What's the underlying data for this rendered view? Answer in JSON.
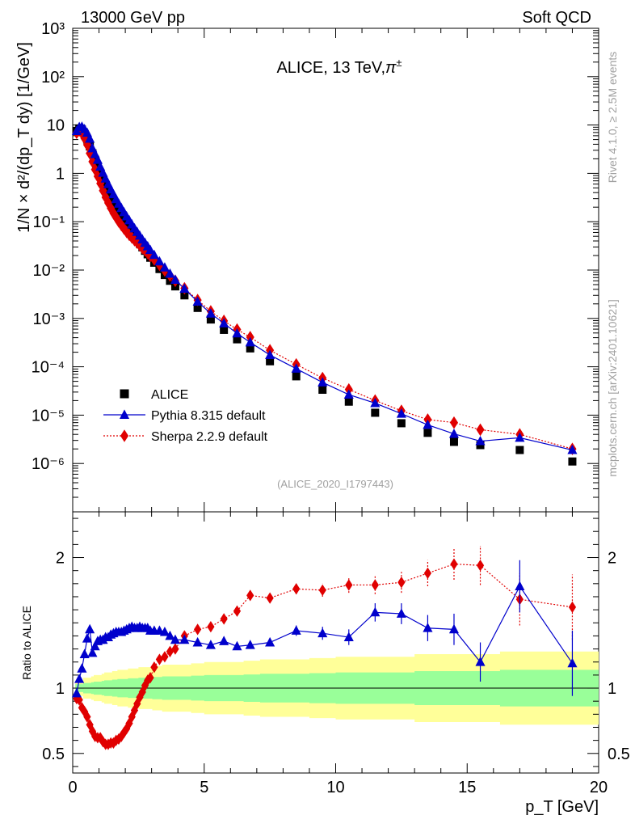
{
  "header": {
    "left": "13000 GeV pp",
    "right": "Soft QCD"
  },
  "side": {
    "rivet": "Rivet 4.1.0, ≥ 2.5M events",
    "mcplots": "mcplots.cern.ch [arXiv:2401.10621]"
  },
  "chart_data": {
    "type": "scatter",
    "title": "ALICE, 13 TeV,",
    "title_particle": "π",
    "title_sup": "±",
    "watermark": "(ALICE_2020_I1797443)",
    "ylabel_main": "1/N × d²/(dp_T dy) [1/GeV]",
    "ylabel_ratio": "Ratio to ALICE",
    "xlabel": "p_T [GeV]",
    "xlim": [
      0,
      20
    ],
    "ylim_main_log10": [
      -7,
      3
    ],
    "ylim_ratio": [
      0.35,
      2.35
    ],
    "x_ticks": [
      "0",
      "5",
      "10",
      "15",
      "20"
    ],
    "y_ticks_main": [
      "10⁻⁶",
      "10⁻⁵",
      "10⁻⁴",
      "10⁻³",
      "10⁻²",
      "10⁻¹",
      "1",
      "10",
      "10²",
      "10³"
    ],
    "y_ticks_ratio": [
      "0.5",
      "1",
      "2"
    ],
    "legend": [
      {
        "label": "ALICE",
        "color": "#000000"
      },
      {
        "label": "Pythia 8.315 default",
        "color": "#0000cc"
      },
      {
        "label": "Sherpa 2.2.9 default",
        "color": "#e00000"
      }
    ],
    "x": [
      0.15,
      0.25,
      0.35,
      0.45,
      0.55,
      0.65,
      0.75,
      0.85,
      0.95,
      1.05,
      1.15,
      1.25,
      1.35,
      1.45,
      1.55,
      1.65,
      1.75,
      1.85,
      1.95,
      2.05,
      2.15,
      2.25,
      2.35,
      2.45,
      2.55,
      2.65,
      2.75,
      2.85,
      2.95,
      3.1,
      3.3,
      3.5,
      3.7,
      3.9,
      4.25,
      4.75,
      5.25,
      5.75,
      6.25,
      6.75,
      7.5,
      8.5,
      9.5,
      10.5,
      11.5,
      12.5,
      13.5,
      14.5,
      15.5,
      17.0,
      19.0
    ],
    "series": [
      {
        "name": "ALICE",
        "values": [
          7.5,
          8.5,
          8.0,
          6.5,
          5.0,
          3.6,
          2.6,
          1.9,
          1.4,
          1.0,
          0.75,
          0.56,
          0.43,
          0.33,
          0.26,
          0.205,
          0.165,
          0.134,
          0.109,
          0.089,
          0.073,
          0.06,
          0.05,
          0.042,
          0.035,
          0.0295,
          0.025,
          0.0212,
          0.018,
          0.0142,
          0.0105,
          0.0079,
          0.006,
          0.0046,
          0.003,
          0.00165,
          0.00095,
          0.00058,
          0.00037,
          0.00024,
          0.00013,
          6.35e-05,
          3.35e-05,
          1.9e-05,
          1.12e-05,
          6.8e-06,
          4.3e-06,
          2.8e-06,
          2.4e-06,
          1.9e-06,
          1.1e-06
        ],
        "err_frac": [
          0.03,
          0.03,
          0.03,
          0.04,
          0.04,
          0.04,
          0.045,
          0.05,
          0.05,
          0.05,
          0.055,
          0.06,
          0.06,
          0.06,
          0.065,
          0.065,
          0.07,
          0.07,
          0.07,
          0.07,
          0.075,
          0.075,
          0.075,
          0.075,
          0.08,
          0.08,
          0.08,
          0.08,
          0.08,
          0.085,
          0.085,
          0.09,
          0.09,
          0.09,
          0.09,
          0.095,
          0.1,
          0.1,
          0.1,
          0.105,
          0.11,
          0.11,
          0.115,
          0.12,
          0.12,
          0.12,
          0.13,
          0.13,
          0.13,
          0.14,
          0.14
        ]
      },
      {
        "name": "Pythia 8.315 default",
        "values": [
          7.5,
          9.1,
          9.2,
          8.2,
          6.9,
          5.2,
          3.3,
          2.5,
          1.9,
          1.37,
          1.03,
          0.78,
          0.6,
          0.465,
          0.37,
          0.293,
          0.236,
          0.192,
          0.157,
          0.129,
          0.107,
          0.088,
          0.073,
          0.0615,
          0.0515,
          0.043,
          0.0365,
          0.031,
          0.026,
          0.0205,
          0.0151,
          0.0113,
          0.0084,
          0.0063,
          0.0041,
          0.00222,
          0.00126,
          0.00079,
          0.00049,
          0.00032,
          0.000175,
          9.15e-05,
          4.75e-05,
          2.65e-05,
          1.77e-05,
          1.07e-05,
          6.3e-06,
          4.1e-06,
          2.9e-06,
          3.4e-06,
          1.9e-06
        ],
        "ratio": [
          0.96,
          1.07,
          1.15,
          1.26,
          1.38,
          1.45,
          1.27,
          1.32,
          1.36,
          1.37,
          1.37,
          1.39,
          1.39,
          1.41,
          1.42,
          1.43,
          1.43,
          1.43,
          1.44,
          1.45,
          1.46,
          1.47,
          1.46,
          1.46,
          1.47,
          1.46,
          1.46,
          1.46,
          1.44,
          1.44,
          1.44,
          1.43,
          1.4,
          1.37,
          1.37,
          1.35,
          1.33,
          1.36,
          1.32,
          1.33,
          1.35,
          1.44,
          1.42,
          1.39,
          1.58,
          1.57,
          1.46,
          1.45,
          1.2,
          1.78,
          1.19
        ],
        "ratio_err": [
          0.01,
          0.01,
          0.01,
          0.01,
          0.01,
          0.01,
          0.01,
          0.01,
          0.01,
          0.01,
          0.01,
          0.01,
          0.01,
          0.01,
          0.01,
          0.01,
          0.01,
          0.01,
          0.01,
          0.01,
          0.01,
          0.01,
          0.01,
          0.01,
          0.01,
          0.01,
          0.01,
          0.01,
          0.01,
          0.01,
          0.01,
          0.01,
          0.01,
          0.01,
          0.01,
          0.01,
          0.02,
          0.02,
          0.02,
          0.03,
          0.03,
          0.04,
          0.05,
          0.06,
          0.07,
          0.08,
          0.1,
          0.12,
          0.15,
          0.2,
          0.25
        ]
      },
      {
        "name": "Sherpa 2.2.9 default",
        "values": [
          6.9,
          7.7,
          6.8,
          5.3,
          3.9,
          2.6,
          1.75,
          1.2,
          0.87,
          0.62,
          0.44,
          0.32,
          0.245,
          0.19,
          0.15,
          0.123,
          0.101,
          0.085,
          0.072,
          0.0615,
          0.0535,
          0.047,
          0.0415,
          0.037,
          0.0325,
          0.0285,
          0.0255,
          0.0225,
          0.0195,
          0.0165,
          0.0128,
          0.0098,
          0.0077,
          0.006,
          0.0042,
          0.0024,
          0.0014,
          0.00089,
          0.00059,
          0.00041,
          0.00022,
          0.000112,
          5.85e-05,
          3.4e-05,
          2.01e-05,
          1.23e-05,
          8.1e-06,
          7e-06,
          5e-06,
          4e-06,
          2e-06
        ],
        "ratio": [
          0.92,
          0.91,
          0.85,
          0.82,
          0.78,
          0.72,
          0.67,
          0.63,
          0.62,
          0.62,
          0.59,
          0.57,
          0.57,
          0.58,
          0.58,
          0.6,
          0.61,
          0.63,
          0.66,
          0.69,
          0.73,
          0.78,
          0.83,
          0.88,
          0.93,
          0.97,
          1.02,
          1.06,
          1.08,
          1.16,
          1.22,
          1.24,
          1.28,
          1.3,
          1.4,
          1.45,
          1.47,
          1.53,
          1.59,
          1.71,
          1.69,
          1.76,
          1.75,
          1.79,
          1.79,
          1.81,
          1.88,
          1.95,
          1.94,
          1.68,
          1.62
        ],
        "ratio_err": [
          0.01,
          0.01,
          0.01,
          0.01,
          0.01,
          0.01,
          0.01,
          0.01,
          0.01,
          0.01,
          0.01,
          0.01,
          0.01,
          0.01,
          0.01,
          0.01,
          0.01,
          0.01,
          0.01,
          0.01,
          0.01,
          0.01,
          0.01,
          0.01,
          0.01,
          0.01,
          0.01,
          0.01,
          0.01,
          0.01,
          0.01,
          0.01,
          0.01,
          0.01,
          0.01,
          0.01,
          0.02,
          0.02,
          0.02,
          0.03,
          0.03,
          0.04,
          0.05,
          0.06,
          0.07,
          0.08,
          0.1,
          0.12,
          0.15,
          0.2,
          0.25
        ]
      }
    ]
  }
}
